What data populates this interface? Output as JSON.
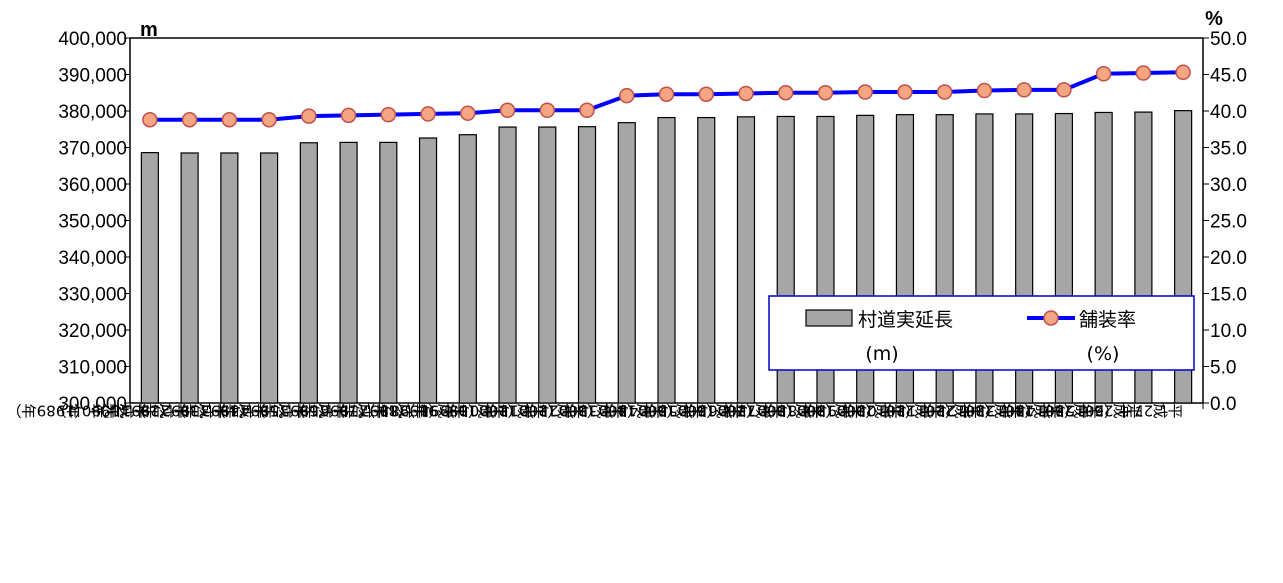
{
  "chart_data": {
    "type": "bar",
    "categories": [
      "平成元年（1989年）",
      "平成2年（1990年）",
      "平成3年（1991年）",
      "平成4年（1992年）",
      "平成5年（1993年）",
      "平成6年（1994年）",
      "平成7年（1995年）",
      "平成8年（1996年）",
      "平成9年（1997年）",
      "平成10年（1998年）",
      "平成11年（1999年）",
      "平成12年（2000年）",
      "平成13年（2001年）",
      "平成14年（2002年）",
      "平成15年（2003年）",
      "平成16年（2004年）",
      "平成17年（2005年）",
      "平成18年（2006年）",
      "平成19年（2007年）",
      "平成20年（2008年）",
      "平成21年（2009年）",
      "平成22年（2010年）",
      "平成23年（2011年）",
      "平成24年（2012年）",
      "平成25年（2013年）",
      "平成26年（2014年）",
      "平成27年（2015年）"
    ],
    "series": [
      {
        "name": "村道実延長",
        "name_unit": "(m)",
        "type": "bar",
        "axis": "left",
        "color": "#a6a6a6",
        "values": [
          368600,
          368500,
          368500,
          368500,
          371300,
          371400,
          371400,
          372600,
          373500,
          375600,
          375600,
          375700,
          376800,
          378200,
          378200,
          378400,
          378500,
          378500,
          378800,
          379000,
          379000,
          379200,
          379200,
          379300,
          379600,
          379700,
          380100
        ]
      },
      {
        "name": "舗装率",
        "name_unit": "(%)",
        "type": "line",
        "axis": "right",
        "color": "#0000ff",
        "marker_color": "#f4a582",
        "marker_edge": "#c0504d",
        "values": [
          38.8,
          38.8,
          38.8,
          38.8,
          39.3,
          39.4,
          39.5,
          39.6,
          39.7,
          40.1,
          40.1,
          40.1,
          42.1,
          42.3,
          42.3,
          42.4,
          42.5,
          42.5,
          42.6,
          42.6,
          42.6,
          42.8,
          42.9,
          42.9,
          45.1,
          45.2,
          45.3
        ]
      }
    ],
    "y_left": {
      "unit": "m",
      "ylim": [
        300000,
        400000
      ],
      "ticks": [
        "300,000",
        "310,000",
        "320,000",
        "330,000",
        "340,000",
        "350,000",
        "360,000",
        "370,000",
        "380,000",
        "390,000",
        "400,000"
      ]
    },
    "y_right": {
      "unit": "%",
      "ylim": [
        0,
        50
      ],
      "ticks": [
        "0.0",
        "5.0",
        "10.0",
        "15.0",
        "20.0",
        "25.0",
        "30.0",
        "35.0",
        "40.0",
        "45.0",
        "50.0"
      ]
    },
    "legend_position": "bottom-right",
    "grid": false
  }
}
